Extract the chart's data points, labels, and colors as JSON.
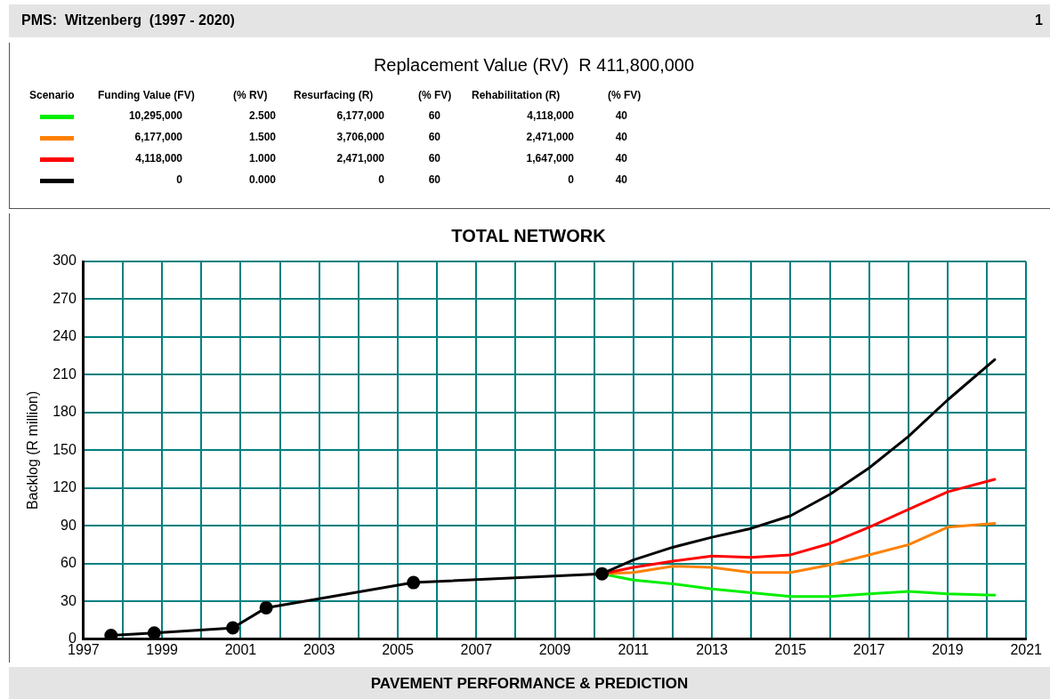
{
  "chart_data": {
    "type": "line",
    "title": "TOTAL NETWORK",
    "ylabel": "Backlog (R million)",
    "annotations": [
      "PMS:  Witzenberg  (1997 - 2020)",
      "1",
      "Replacement Value (RV)  R 411,800,000",
      "Scenario",
      "Funding Value (FV)",
      "(% RV)",
      "Resurfacing (R)",
      "(% FV)",
      "Rehabilitation (R)",
      "(% FV)",
      "10,295,000",
      "2.500",
      "6,177,000",
      "60",
      "4,118,000",
      "40",
      "6,177,000",
      "1.500",
      "3,706,000",
      "60",
      "2,471,000",
      "40",
      "4,118,000",
      "1.000",
      "2,471,000",
      "60",
      "1,647,000",
      "40",
      "0",
      "0.000",
      "0",
      "60",
      "0",
      "40",
      "PAVEMENT PERFORMANCE & PREDICTION"
    ],
    "series": [
      {
        "color": "#00ee00",
        "x": [
          2010.2,
          2011,
          2012,
          2013,
          2014,
          2015,
          2016,
          2017,
          2018,
          2019,
          2020.2
        ],
        "values": [
          52,
          47,
          44,
          40,
          37,
          34,
          34,
          36,
          38,
          36,
          35
        ]
      },
      {
        "color": "#ff8000",
        "x": [
          2010.2,
          2011,
          2012,
          2013,
          2014,
          2015,
          2016,
          2017,
          2018,
          2019,
          2020.2
        ],
        "values": [
          52,
          53,
          58,
          57,
          53,
          53,
          59,
          67,
          75,
          89,
          92
        ]
      },
      {
        "color": "#ff0000",
        "x": [
          2010.2,
          2011,
          2012,
          2013,
          2014,
          2015,
          2016,
          2017,
          2018,
          2019,
          2020.2
        ],
        "values": [
          52,
          57,
          62,
          66,
          65,
          67,
          76,
          89,
          103,
          117,
          127
        ]
      },
      {
        "color": "#000000",
        "x": [
          2010.2,
          2011,
          2012,
          2013,
          2014,
          2015,
          2016,
          2017,
          2018,
          2019,
          2020.2
        ],
        "values": [
          52,
          63,
          73,
          81,
          88,
          98,
          115,
          136,
          161,
          190,
          222
        ]
      },
      {
        "color": "#000000",
        "marker": "circle",
        "x": [
          1997.7,
          1998.8,
          2000.8,
          2001.65,
          2005.4,
          2010.2
        ],
        "values": [
          3,
          5,
          9,
          25,
          45,
          52
        ]
      }
    ],
    "xlim": [
      1997,
      2021
    ],
    "xticks": [
      1997,
      {
        "value": 1998,
        "label": null
      },
      1999,
      {
        "value": 2000,
        "label": null
      },
      2001,
      {
        "value": 2002,
        "label": null
      },
      2003,
      {
        "value": 2004,
        "label": null
      },
      2005,
      {
        "value": 2006,
        "label": null
      },
      2007,
      {
        "value": 2008,
        "label": null
      },
      2009,
      {
        "value": 2010,
        "label": null
      },
      2011,
      {
        "value": 2012,
        "label": null
      },
      2013,
      {
        "value": 2014,
        "label": null
      },
      2015,
      {
        "value": 2016,
        "label": null
      },
      2017,
      {
        "value": 2018,
        "label": null
      },
      2019,
      {
        "value": 2020,
        "label": null
      },
      2021
    ],
    "ylim": [
      0,
      300
    ],
    "yticks": [
      0,
      30,
      60,
      90,
      120,
      150,
      180,
      210,
      240,
      270,
      300
    ],
    "grid": true,
    "legend": false,
    "line_style": "solid"
  }
}
